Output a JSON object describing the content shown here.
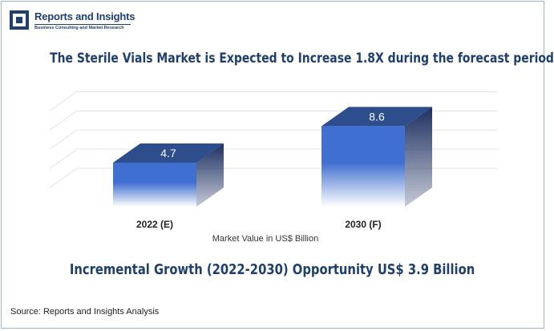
{
  "brand": {
    "name": "Reports and Insights",
    "tagline": "Business Consulting and Market Research"
  },
  "headline": "The Sterile Vials Market is Expected to Increase 1.8X during the forecast period",
  "subheadline": "Incremental Growth (2022-2030) Opportunity US$ 3.9 Billion",
  "source": "Source: Reports and Insights Analysis",
  "chart_data": {
    "type": "bar",
    "categories": [
      "2022 (E)",
      "2030 (F)"
    ],
    "values": [
      4.7,
      8.6
    ],
    "data_labels": [
      "4.7",
      "8.6"
    ],
    "xlabel": "Market Value in US$ Billion",
    "ylabel": "",
    "ylim": [
      0,
      10
    ],
    "grid": true,
    "three_d": true,
    "colors": {
      "front_top": "#3f6fd0",
      "front_bottom": "#ffffff",
      "top": "#2d4d8c",
      "side": "#1d2f60",
      "grid": "#e3e3e3"
    }
  }
}
